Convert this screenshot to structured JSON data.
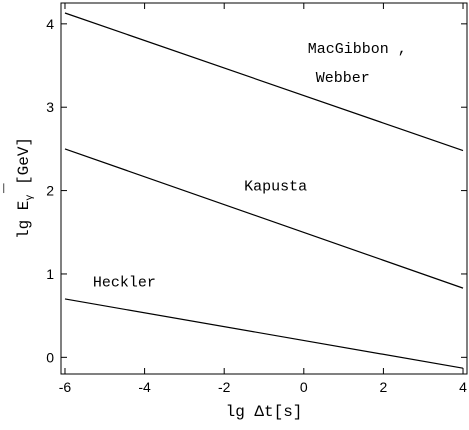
{
  "chart_data": {
    "type": "line",
    "title": "",
    "xlabel": "lg Δt[s]",
    "ylabel_parts": {
      "prefix": "lg ",
      "symbol": "E",
      "bar": "¯",
      "subscript": "γ",
      "suffix": " [GeV]"
    },
    "xlim": [
      -6.1,
      4.1
    ],
    "ylim": [
      -0.2,
      4.25
    ],
    "x_ticks": [
      -6,
      -4,
      -2,
      0,
      2,
      4
    ],
    "y_ticks": [
      0,
      1,
      2,
      3,
      4
    ],
    "x_tick_labels": [
      "-6",
      "-4",
      "-2",
      "0",
      "2",
      "4"
    ],
    "y_tick_labels": [
      "0",
      "1",
      "2",
      "3",
      "4"
    ],
    "grid": false,
    "series": [
      {
        "x": [
          -6,
          4
        ],
        "y": [
          4.13,
          2.48
        ]
      },
      {
        "x": [
          -6,
          4
        ],
        "y": [
          2.5,
          0.83
        ]
      },
      {
        "x": [
          -6,
          4
        ],
        "y": [
          0.7,
          -0.13
        ]
      }
    ],
    "annotations": [
      {
        "text": "MacGibbon ,",
        "x": 0.1,
        "y": 3.65
      },
      {
        "text": "Webber",
        "x": 0.3,
        "y": 3.3
      },
      {
        "text": "Kapusta",
        "x": -1.5,
        "y": 2.0
      },
      {
        "text": "Heckler",
        "x": -5.3,
        "y": 0.85
      }
    ]
  }
}
